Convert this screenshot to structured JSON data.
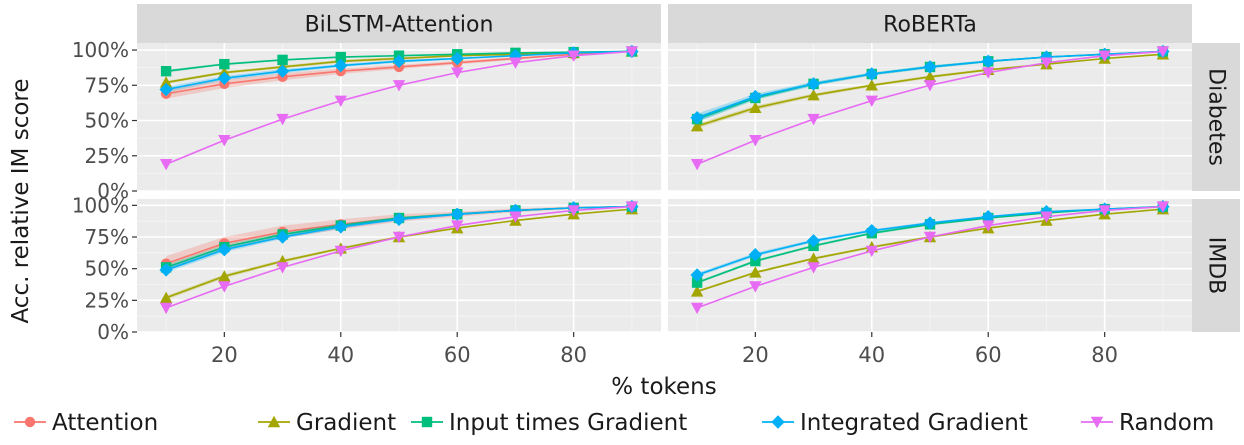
{
  "chart_data": {
    "type": "line",
    "xlabel": "% tokens",
    "ylabel": "Acc. relative IM score",
    "x": [
      10,
      20,
      30,
      40,
      50,
      60,
      70,
      80,
      90
    ],
    "xlim": [
      5,
      95
    ],
    "ylim": [
      0,
      105
    ],
    "x_ticks": [
      20,
      40,
      60,
      80
    ],
    "x_tick_labels": [
      "20",
      "40",
      "60",
      "80"
    ],
    "y_ticks": [
      0,
      25,
      50,
      75,
      100
    ],
    "y_tick_labels": [
      "0%",
      "25%",
      "50%",
      "75%",
      "100%"
    ],
    "col_facets": [
      "BiLSTM-Attention",
      "RoBERTa"
    ],
    "row_facets": [
      "Diabetes",
      "IMDB"
    ],
    "grid": true,
    "legend_position": "bottom",
    "series_style": [
      {
        "name": "Attention",
        "color": "#F8766D",
        "marker": "circle"
      },
      {
        "name": "Gradient",
        "color": "#A3A500",
        "marker": "triangle-up"
      },
      {
        "name": "Input times Gradient",
        "color": "#00BF7D",
        "marker": "square"
      },
      {
        "name": "Integrated Gradient",
        "color": "#00B0F6",
        "marker": "diamond"
      },
      {
        "name": "Random",
        "color": "#E76BF3",
        "marker": "triangle-down"
      }
    ],
    "panels": [
      {
        "column": "BiLSTM-Attention",
        "row": "Diabetes",
        "series": [
          {
            "name": "Attention",
            "values": [
              69,
              76,
              81,
              85,
              88,
              91,
              94,
              97,
              99
            ],
            "band": [
              3.5,
              3,
              2.5,
              2,
              1.5,
              1.2,
              1,
              0.5,
              0.3
            ]
          },
          {
            "name": "Gradient",
            "values": [
              77,
              84,
              88,
              92,
              94,
              96,
              97,
              98,
              99
            ],
            "band": [
              1,
              1,
              1,
              1,
              1,
              0.5,
              0.5,
              0.3,
              0.2
            ]
          },
          {
            "name": "Input times Gradient",
            "values": [
              85,
              90,
              93,
              95,
              96,
              97,
              98,
              98.5,
              99
            ],
            "band": [
              1,
              0.8,
              0.6,
              0.5,
              0.4,
              0.3,
              0.3,
              0.2,
              0.2
            ]
          },
          {
            "name": "Integrated Gradient",
            "values": [
              72,
              80,
              85,
              89,
              92,
              94,
              96,
              98,
              99
            ],
            "band": [
              2,
              1.5,
              1.5,
              1,
              1,
              0.8,
              0.5,
              0.3,
              0.2
            ]
          },
          {
            "name": "Random",
            "values": [
              19,
              36,
              51,
              64,
              75,
              84,
              91,
              96,
              99
            ],
            "band": [
              0.5,
              0.5,
              0.5,
              0.5,
              0.5,
              0.5,
              0.5,
              0.5,
              0.3
            ]
          }
        ]
      },
      {
        "column": "RoBERTa",
        "row": "Diabetes",
        "series": [
          {
            "name": "Attention",
            "values": [
              null,
              null,
              null,
              null,
              null,
              null,
              null,
              null,
              null
            ],
            "band": [
              0,
              0,
              0,
              0,
              0,
              0,
              0,
              0,
              0
            ]
          },
          {
            "name": "Gradient",
            "values": [
              46,
              59,
              68,
              75,
              81,
              86,
              90,
              94,
              97
            ],
            "band": [
              1.5,
              1.5,
              1.2,
              1,
              1,
              0.8,
              0.5,
              0.4,
              0.3
            ]
          },
          {
            "name": "Input times Gradient",
            "values": [
              51,
              66,
              76,
              83,
              88,
              92,
              95,
              97,
              99
            ],
            "band": [
              2,
              1.5,
              1.2,
              1,
              1,
              0.8,
              0.5,
              0.4,
              0.3
            ]
          },
          {
            "name": "Integrated Gradient",
            "values": [
              52,
              67,
              76,
              83,
              88,
              92,
              95,
              97,
              99
            ],
            "band": [
              3,
              2,
              1.5,
              1,
              1,
              0.8,
              0.5,
              0.4,
              0.3
            ]
          },
          {
            "name": "Random",
            "values": [
              19,
              36,
              51,
              64,
              75,
              84,
              91,
              96,
              99
            ],
            "band": [
              0.5,
              0.5,
              0.5,
              0.5,
              0.5,
              0.5,
              0.5,
              0.5,
              0.3
            ]
          }
        ]
      },
      {
        "column": "BiLSTM-Attention",
        "row": "IMDB",
        "series": [
          {
            "name": "Attention",
            "values": [
              54,
              70,
              79,
              85,
              90,
              93,
              96,
              98,
              99
            ],
            "band": [
              6,
              5,
              5,
              4,
              3,
              2,
              1.5,
              1,
              0.5
            ]
          },
          {
            "name": "Gradient",
            "values": [
              27,
              44,
              56,
              66,
              75,
              82,
              88,
              93,
              97
            ],
            "band": [
              1.5,
              1.5,
              1.2,
              1,
              1,
              0.8,
              0.6,
              0.4,
              0.3
            ]
          },
          {
            "name": "Input times Gradient",
            "values": [
              51,
              67,
              77,
              84,
              90,
              93,
              96,
              98,
              99
            ],
            "band": [
              2,
              2,
              1.5,
              1.5,
              1,
              1,
              0.5,
              0.4,
              0.3
            ]
          },
          {
            "name": "Integrated Gradient",
            "values": [
              49,
              65,
              75,
              83,
              89,
              93,
              96,
              98,
              99
            ],
            "band": [
              2,
              2,
              1.5,
              1.5,
              1,
              1,
              0.5,
              0.4,
              0.3
            ]
          },
          {
            "name": "Random",
            "values": [
              19,
              36,
              51,
              64,
              75,
              84,
              91,
              96,
              99
            ],
            "band": [
              0.5,
              0.5,
              0.5,
              0.5,
              0.5,
              0.5,
              0.5,
              0.5,
              0.3
            ]
          }
        ]
      },
      {
        "column": "RoBERTa",
        "row": "IMDB",
        "series": [
          {
            "name": "Attention",
            "values": [
              null,
              null,
              null,
              null,
              null,
              null,
              null,
              null,
              null
            ],
            "band": [
              0,
              0,
              0,
              0,
              0,
              0,
              0,
              0,
              0
            ]
          },
          {
            "name": "Gradient",
            "values": [
              32,
              47,
              58,
              67,
              75,
              82,
              88,
              93,
              97
            ],
            "band": [
              1,
              1,
              1,
              1,
              1,
              0.8,
              0.5,
              0.4,
              0.3
            ]
          },
          {
            "name": "Input times Gradient",
            "values": [
              39,
              56,
              68,
              78,
              85,
              90,
              94,
              97,
              99
            ],
            "band": [
              1,
              1,
              1,
              1,
              1,
              0.8,
              0.5,
              0.4,
              0.3
            ]
          },
          {
            "name": "Integrated Gradient",
            "values": [
              45,
              61,
              72,
              80,
              86,
              91,
              95,
              97,
              99
            ],
            "band": [
              1.5,
              1.5,
              1.2,
              1,
              1,
              0.8,
              0.5,
              0.4,
              0.3
            ]
          },
          {
            "name": "Random",
            "values": [
              19,
              36,
              51,
              64,
              75,
              84,
              91,
              96,
              99
            ],
            "band": [
              0.5,
              0.5,
              0.5,
              0.5,
              0.5,
              0.5,
              0.5,
              0.5,
              0.3
            ]
          }
        ]
      }
    ]
  }
}
